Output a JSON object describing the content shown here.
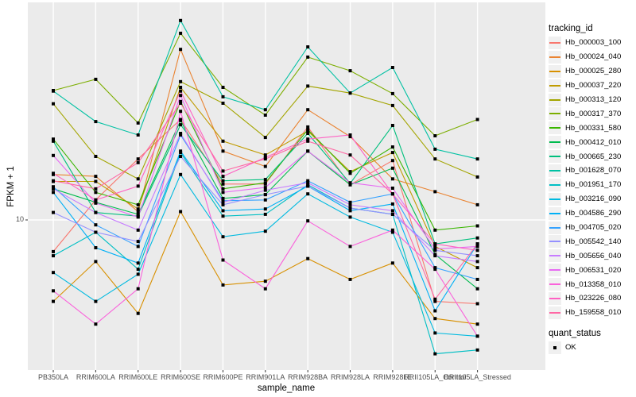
{
  "figure": {
    "panel_bg": "#EBEBEB",
    "grid_color": "#FFFFFF",
    "tick_color": "#333333",
    "point_color": "#000000"
  },
  "chart_data": {
    "type": "line",
    "title": "",
    "xlabel": "sample_name",
    "ylabel": "FPKM + 1",
    "y_scale": "log10",
    "y_tick_values": [
      10
    ],
    "y_tick_labels": [
      "10"
    ],
    "ylim": [
      2.1,
      95
    ],
    "grid": "major-on",
    "marker": "black-square",
    "legend_position": "right",
    "categories": [
      "PB350LA",
      "RRIM600LA",
      "RRIM600LE",
      "RRIM600SE",
      "RRIM600PE",
      "RRIM901LA",
      "RRIM928BA",
      "RRIM928LA",
      "RRIM928LE",
      "RRII105LA_Control",
      "RRII105LA_Stressed"
    ],
    "legend": {
      "title": "tracking_id"
    },
    "quant_legend": {
      "title": "quant_status",
      "items": [
        "OK"
      ]
    },
    "series": [
      {
        "name": "Hb_000003_100",
        "color": "#F8766D",
        "values": [
          7.2,
          12.3,
          18.8,
          28.3,
          14.5,
          14.5,
          26.2,
          14.4,
          18.5,
          4.3,
          4.2
        ]
      },
      {
        "name": "Hb_000024_040",
        "color": "#EA8331",
        "values": [
          16.0,
          15.7,
          10.9,
          58.5,
          20.4,
          17.4,
          31.3,
          23.7,
          15.3,
          13.4,
          11.7
        ]
      },
      {
        "name": "Hb_000025_280",
        "color": "#D89000",
        "values": [
          4.3,
          6.5,
          3.8,
          10.9,
          5.1,
          5.3,
          6.7,
          5.4,
          6.4,
          3.6,
          3.4
        ]
      },
      {
        "name": "Hb_000037_220",
        "color": "#C09B00",
        "values": [
          14.9,
          14.9,
          11.2,
          39.5,
          22.6,
          19.6,
          25.1,
          16.5,
          20.1,
          7.6,
          6.1
        ]
      },
      {
        "name": "Hb_000313_120",
        "color": "#A3A500",
        "values": [
          33.3,
          19.3,
          15.3,
          41.9,
          33.5,
          23.5,
          40.0,
          37.2,
          32.7,
          18.8,
          15.6
        ]
      },
      {
        "name": "Hb_000317_370",
        "color": "#7CAE00",
        "values": [
          38.2,
          42.9,
          27.3,
          69.1,
          39.5,
          29.6,
          54.0,
          46.9,
          37.0,
          23.9,
          28.3
        ]
      },
      {
        "name": "Hb_000331_580",
        "color": "#39B600",
        "values": [
          23.1,
          13.3,
          11.7,
          34.1,
          13.8,
          14.7,
          25.5,
          16.2,
          21.3,
          9.0,
          9.4
        ]
      },
      {
        "name": "Hb_000412_010",
        "color": "#00BB4E",
        "values": [
          13.8,
          12.0,
          10.6,
          28.0,
          12.5,
          13.0,
          20.4,
          14.4,
          17.1,
          7.0,
          4.9
        ]
      },
      {
        "name": "Hb_000665_230",
        "color": "#00BF7D",
        "values": [
          22.6,
          10.8,
          10.4,
          26.8,
          15.0,
          15.2,
          24.5,
          14.6,
          26.6,
          7.8,
          8.3
        ]
      },
      {
        "name": "Hb_001628_070",
        "color": "#00C1A3",
        "values": [
          38.0,
          27.7,
          24.1,
          78.9,
          35.8,
          31.3,
          60.0,
          37.2,
          48.5,
          20.8,
          18.8
        ]
      },
      {
        "name": "Hb_001951_170",
        "color": "#00BFC4",
        "values": [
          6.9,
          8.8,
          6.0,
          20.1,
          10.4,
          10.6,
          14.4,
          11.3,
          10.6,
          2.5,
          2.6
        ]
      },
      {
        "name": "Hb_003216_090",
        "color": "#00BAE0",
        "values": [
          5.8,
          4.3,
          5.7,
          16.0,
          8.4,
          8.9,
          13.1,
          10.3,
          8.8,
          3.1,
          3.0
        ]
      },
      {
        "name": "Hb_004586_290",
        "color": "#00B0F6",
        "values": [
          13.3,
          7.5,
          6.4,
          20.4,
          11.0,
          11.2,
          14.2,
          11.0,
          11.8,
          3.9,
          7.8
        ]
      },
      {
        "name": "Hb_004705_020",
        "color": "#35A2FF",
        "values": [
          14.1,
          9.5,
          7.6,
          24.1,
          12.2,
          12.3,
          15.0,
          12.0,
          13.1,
          6.1,
          5.4
        ]
      },
      {
        "name": "Hb_005542_140",
        "color": "#9590FF",
        "values": [
          10.8,
          8.8,
          8.0,
          19.3,
          11.7,
          13.0,
          14.2,
          11.3,
          10.6,
          7.3,
          6.9
        ]
      },
      {
        "name": "Hb_005656_040",
        "color": "#C77CFF",
        "values": [
          13.8,
          10.8,
          9.0,
          24.5,
          12.0,
          13.6,
          14.7,
          11.7,
          11.0,
          6.9,
          6.5
        ]
      },
      {
        "name": "Hb_006531_020",
        "color": "#E76BF3",
        "values": [
          19.5,
          11.9,
          10.3,
          36.3,
          13.3,
          14.0,
          20.4,
          14.7,
          13.9,
          7.4,
          7.6
        ]
      },
      {
        "name": "Hb_013358_010",
        "color": "#FA62DB",
        "values": [
          4.8,
          3.4,
          4.9,
          30.8,
          6.6,
          4.9,
          9.9,
          7.6,
          9.0,
          6.0,
          3.0
        ]
      },
      {
        "name": "Hb_023226_080",
        "color": "#FF61C3",
        "values": [
          16.2,
          12.3,
          14.2,
          38.0,
          15.7,
          19.1,
          23.1,
          24.1,
          13.1,
          7.8,
          7.3
        ]
      },
      {
        "name": "Hb_159558_010",
        "color": "#FF67A4",
        "values": [
          15.0,
          13.8,
          18.1,
          33.5,
          16.6,
          18.8,
          22.6,
          19.6,
          13.1,
          4.4,
          7.8
        ]
      }
    ]
  }
}
